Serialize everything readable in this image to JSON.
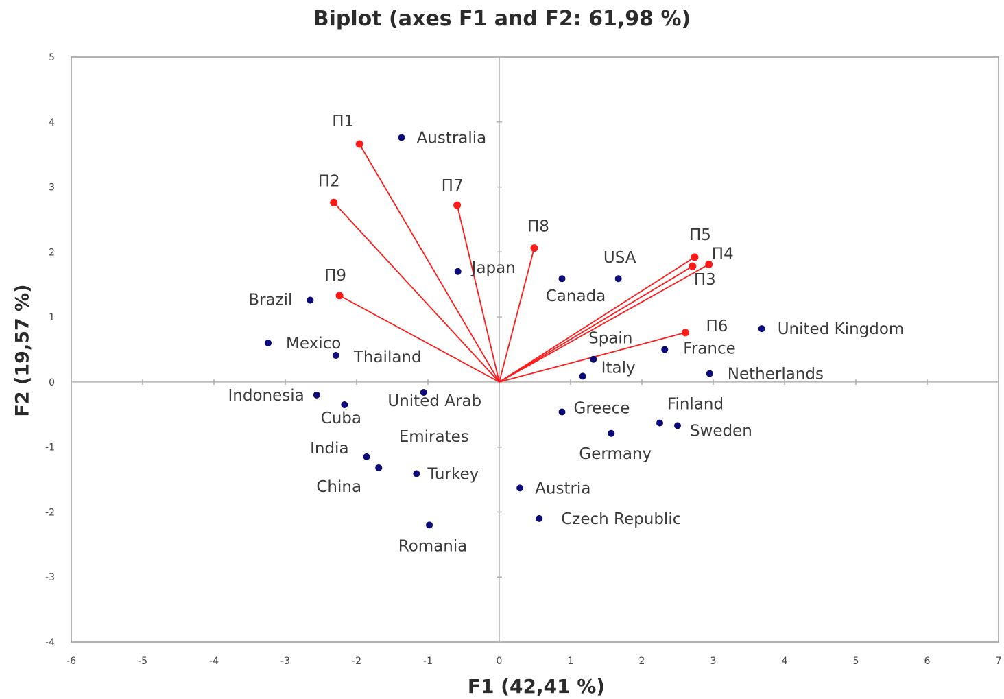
{
  "chart_data": {
    "type": "scatter",
    "title": "Biplot (axes F1 and F2: 61,98 %)",
    "xlabel": "F1 (42,41 %)",
    "ylabel": "F2 (19,57 %)",
    "xlim": [
      -6,
      7
    ],
    "ylim": [
      -4,
      5
    ],
    "xticks": [
      "-6",
      "-5",
      "-4",
      "-3",
      "-2",
      "-1",
      "0",
      "1",
      "2",
      "3",
      "4",
      "5",
      "6",
      "7"
    ],
    "yticks": [
      "5",
      "4",
      "3",
      "2",
      "1",
      "0",
      "-1",
      "-2",
      "-3",
      "-4"
    ],
    "grid": false,
    "colors": {
      "observations": "#0b0b7a",
      "variables": "#ff1a1a",
      "axes": "#b0b0b0"
    },
    "observations": [
      {
        "label": "Australia",
        "x": -1.37,
        "y": 3.76
      },
      {
        "label": "Japan",
        "x": -0.58,
        "y": 1.7
      },
      {
        "label": "Brazil",
        "x": -2.65,
        "y": 1.26
      },
      {
        "label": "Mexico",
        "x": -3.24,
        "y": 0.6
      },
      {
        "label": "Thailand",
        "x": -2.29,
        "y": 0.41
      },
      {
        "label": "Indonesia",
        "x": -2.56,
        "y": -0.2
      },
      {
        "label": "Cuba",
        "x": -2.17,
        "y": -0.35
      },
      {
        "label": "United Arab",
        "x": -1.06,
        "y": -0.16
      },
      {
        "label": "Emirates",
        "x": null,
        "y": null
      },
      {
        "label": "India",
        "x": -1.86,
        "y": -1.15
      },
      {
        "label": "China",
        "x": -1.69,
        "y": -1.32
      },
      {
        "label": "Turkey",
        "x": -1.16,
        "y": -1.41
      },
      {
        "label": "Romania",
        "x": -0.98,
        "y": -2.2
      },
      {
        "label": "USA",
        "x": 1.67,
        "y": 1.59
      },
      {
        "label": "Canada",
        "x": 0.88,
        "y": 1.59
      },
      {
        "label": "Spain",
        "x": 1.32,
        "y": 0.35
      },
      {
        "label": "Italy",
        "x": 1.17,
        "y": 0.09
      },
      {
        "label": "France",
        "x": 2.32,
        "y": 0.5
      },
      {
        "label": "Netherlands",
        "x": 2.95,
        "y": 0.13
      },
      {
        "label": "United Kingdom",
        "x": 3.68,
        "y": 0.82
      },
      {
        "label": "Greece",
        "x": 0.88,
        "y": -0.46
      },
      {
        "label": "Finland",
        "x": 2.25,
        "y": -0.63
      },
      {
        "label": "Sweden",
        "x": 2.5,
        "y": -0.67
      },
      {
        "label": "Germany",
        "x": 1.57,
        "y": -0.79
      },
      {
        "label": "Austria",
        "x": 0.29,
        "y": -1.63
      },
      {
        "label": "Czech Republic",
        "x": 0.56,
        "y": -2.1
      }
    ],
    "variables": [
      {
        "label": "П1",
        "x": -1.96,
        "y": 3.66
      },
      {
        "label": "П2",
        "x": -2.32,
        "y": 2.76
      },
      {
        "label": "П7",
        "x": -0.59,
        "y": 2.72
      },
      {
        "label": "П8",
        "x": 0.49,
        "y": 2.06
      },
      {
        "label": "П9",
        "x": -2.24,
        "y": 1.33
      },
      {
        "label": "П5",
        "x": 2.74,
        "y": 1.92
      },
      {
        "label": "П4",
        "x": 2.94,
        "y": 1.81
      },
      {
        "label": "П3",
        "x": 2.71,
        "y": 1.78
      },
      {
        "label": "П6",
        "x": 2.61,
        "y": 0.76
      }
    ]
  }
}
